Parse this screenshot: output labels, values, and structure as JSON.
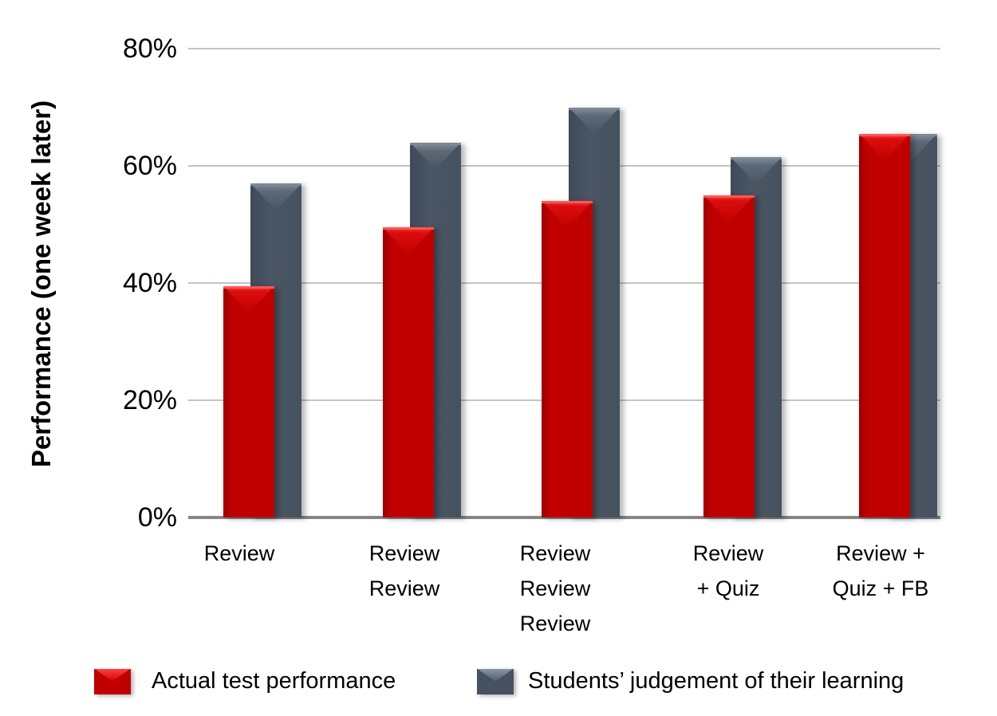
{
  "chart_data": {
    "type": "bar",
    "title": "",
    "xlabel": "",
    "ylabel": "Performance (one week later)",
    "ylim": [
      0,
      80
    ],
    "yticks": [
      "0%",
      "20%",
      "40%",
      "60%",
      "80%"
    ],
    "grid": true,
    "legend_position": "bottom",
    "categories": [
      "Review",
      "Review Review",
      "Review Review Review",
      "Review + Quiz",
      "Review + Quiz + FB"
    ],
    "category_lines": [
      [
        "Review"
      ],
      [
        "Review",
        "Review"
      ],
      [
        "Review",
        "Review",
        "Review"
      ],
      [
        "Review",
        "+ Quiz"
      ],
      [
        "Review +",
        "Quiz + FB"
      ]
    ],
    "series": [
      {
        "name": "Actual test performance",
        "color": "#c00000",
        "values": [
          39.5,
          49.5,
          54,
          55,
          65.5
        ]
      },
      {
        "name": "Students’ judgement of their learning",
        "color": "#46525f",
        "values": [
          57,
          64,
          70,
          61.5,
          65.5
        ]
      }
    ]
  },
  "legend": {
    "items": [
      {
        "label": "Actual test performance"
      },
      {
        "label": "Students’ judgement of their learning"
      }
    ]
  }
}
